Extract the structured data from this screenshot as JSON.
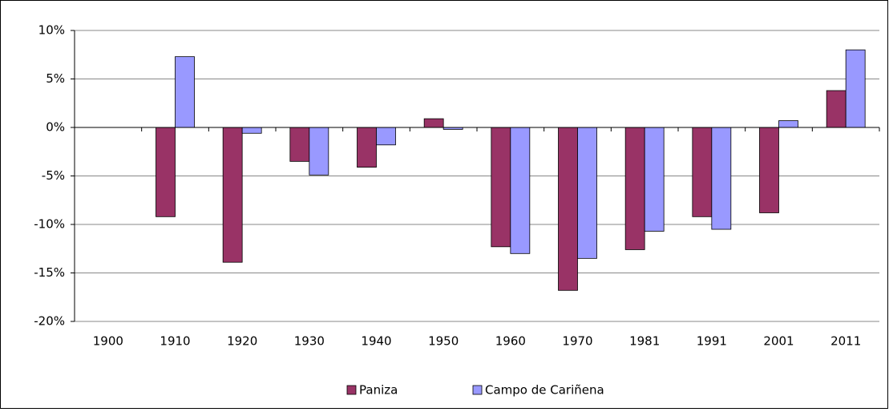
{
  "chart_data": {
    "type": "bar",
    "categories": [
      "1900",
      "1910",
      "1920",
      "1930",
      "1940",
      "1950",
      "1960",
      "1970",
      "1981",
      "1991",
      "2001",
      "2011"
    ],
    "series": [
      {
        "name": "Paniza",
        "color": "#993366",
        "values": [
          null,
          -9.2,
          -13.9,
          -3.5,
          -4.1,
          0.9,
          -12.3,
          -16.8,
          -12.6,
          -9.2,
          -8.8,
          3.8
        ]
      },
      {
        "name": "Campo de Cariñena",
        "color": "#9999ff",
        "values": [
          null,
          7.3,
          -0.6,
          -4.9,
          -1.8,
          -0.2,
          -13.0,
          -13.5,
          -10.7,
          -10.5,
          0.7,
          8.0
        ]
      }
    ],
    "ylim": [
      -20,
      10
    ],
    "yticks": [
      {
        "value": -20,
        "label": "-20%"
      },
      {
        "value": -15,
        "label": "-15%"
      },
      {
        "value": -10,
        "label": "-10%"
      },
      {
        "value": -5,
        "label": "-5%"
      },
      {
        "value": 0,
        "label": "0%"
      },
      {
        "value": 5,
        "label": "5%"
      },
      {
        "value": 10,
        "label": "10%"
      }
    ],
    "grid": true,
    "legend": "bottom"
  }
}
